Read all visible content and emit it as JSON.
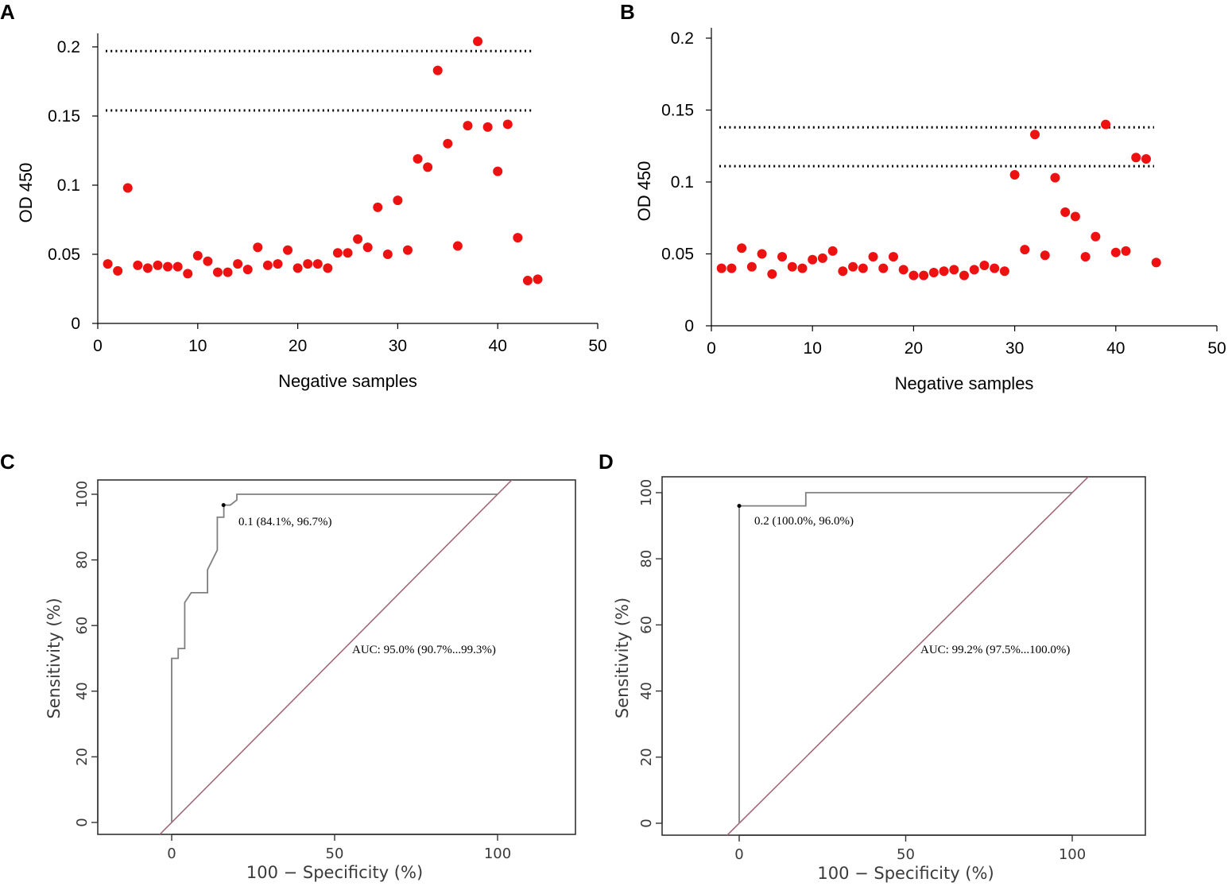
{
  "chart_data": [
    {
      "panel": "A",
      "type": "scatter",
      "title": "",
      "xlabel": "Negative samples",
      "ylabel": "OD 450",
      "xlim": [
        0,
        50
      ],
      "ylim": [
        0,
        0.2
      ],
      "xticks": [
        "0",
        "10",
        "20",
        "30",
        "40",
        "50"
      ],
      "yticks": [
        "0",
        "0.05",
        "0.1",
        "0.15",
        "0.2"
      ],
      "point_color": "#ee1111",
      "cutoff_lines": [
        0.197,
        0.154
      ],
      "x": [
        1,
        2,
        3,
        4,
        5,
        6,
        7,
        8,
        9,
        10,
        11,
        12,
        13,
        14,
        15,
        16,
        17,
        18,
        19,
        20,
        21,
        22,
        23,
        24,
        25,
        26,
        27,
        28,
        29,
        30,
        31,
        32,
        33,
        34,
        35,
        36,
        37,
        38,
        39,
        40,
        41,
        42,
        43,
        44
      ],
      "y": [
        0.043,
        0.038,
        0.098,
        0.042,
        0.04,
        0.042,
        0.041,
        0.041,
        0.036,
        0.049,
        0.045,
        0.037,
        0.037,
        0.043,
        0.039,
        0.055,
        0.042,
        0.043,
        0.053,
        0.04,
        0.043,
        0.043,
        0.04,
        0.051,
        0.051,
        0.061,
        0.055,
        0.084,
        0.05,
        0.089,
        0.053,
        0.119,
        0.113,
        0.183,
        0.13,
        0.056,
        0.143,
        0.204,
        0.142,
        0.11,
        0.144,
        0.062,
        0.031,
        0.032
      ]
    },
    {
      "panel": "B",
      "type": "scatter",
      "title": "",
      "xlabel": "Negative samples",
      "ylabel": "OD 450",
      "xlim": [
        0,
        50
      ],
      "ylim": [
        0,
        0.2
      ],
      "xticks": [
        "0",
        "10",
        "20",
        "30",
        "40",
        "50"
      ],
      "yticks": [
        "0",
        "0.05",
        "0.1",
        "0.15",
        "0.2"
      ],
      "point_color": "#ee1111",
      "cutoff_lines": [
        0.138,
        0.111
      ],
      "x": [
        1,
        2,
        3,
        4,
        5,
        6,
        7,
        8,
        9,
        10,
        11,
        12,
        13,
        14,
        15,
        16,
        17,
        18,
        19,
        20,
        21,
        22,
        23,
        24,
        25,
        26,
        27,
        28,
        29,
        30,
        31,
        32,
        33,
        34,
        35,
        36,
        37,
        38,
        39,
        40,
        41,
        42,
        43,
        44
      ],
      "y": [
        0.04,
        0.04,
        0.054,
        0.041,
        0.05,
        0.036,
        0.048,
        0.041,
        0.04,
        0.046,
        0.047,
        0.052,
        0.038,
        0.041,
        0.04,
        0.048,
        0.04,
        0.048,
        0.039,
        0.035,
        0.035,
        0.037,
        0.038,
        0.039,
        0.035,
        0.039,
        0.042,
        0.04,
        0.038,
        0.105,
        0.053,
        0.133,
        0.049,
        0.103,
        0.079,
        0.076,
        0.048,
        0.062,
        0.14,
        0.051,
        0.052,
        0.117,
        0.116,
        0.044
      ]
    },
    {
      "panel": "C",
      "type": "line",
      "title": "",
      "xlabel": "100 − Specificity (%)",
      "ylabel": "Sensitivity (%)",
      "xlim": [
        -23,
        124
      ],
      "ylim": [
        -4,
        104
      ],
      "xticks": [
        "0",
        "50",
        "100"
      ],
      "yticks": [
        "0",
        "20",
        "40",
        "60",
        "80",
        "100"
      ],
      "roc_color": "#808080",
      "diagonal_color": "#a06070",
      "roc_x": [
        0,
        0,
        0,
        2,
        2,
        4,
        4,
        6,
        6,
        11,
        11,
        14,
        14,
        16,
        16,
        16,
        18,
        20,
        20,
        100
      ],
      "roc_y": [
        0,
        50,
        50,
        50,
        53,
        53,
        67,
        70,
        70,
        70,
        77,
        83,
        93,
        93,
        96.7,
        96.7,
        96.7,
        98.3,
        100,
        100
      ],
      "best_threshold": {
        "x": 15.9,
        "y": 96.7
      },
      "threshold_label": "0.1 (84.1%, 96.7%)",
      "auc_label": "AUC: 95.0% (90.7%...99.3%)"
    },
    {
      "panel": "D",
      "type": "line",
      "title": "",
      "xlabel": "100 − Specificity (%)",
      "ylabel": "Sensitivity (%)",
      "xlim": [
        -23,
        124
      ],
      "ylim": [
        -4,
        104
      ],
      "xticks": [
        "0",
        "50",
        "100"
      ],
      "yticks": [
        "0",
        "20",
        "40",
        "60",
        "80",
        "100"
      ],
      "roc_color": "#808080",
      "diagonal_color": "#a06070",
      "roc_x": [
        0,
        0,
        20,
        20,
        100
      ],
      "roc_y": [
        0,
        96,
        96,
        100,
        100
      ],
      "best_threshold": {
        "x": 0,
        "y": 96
      },
      "threshold_label": "0.2 (100.0%, 96.0%)",
      "auc_label": "AUC: 99.2% (97.5%...100.0%)"
    }
  ]
}
